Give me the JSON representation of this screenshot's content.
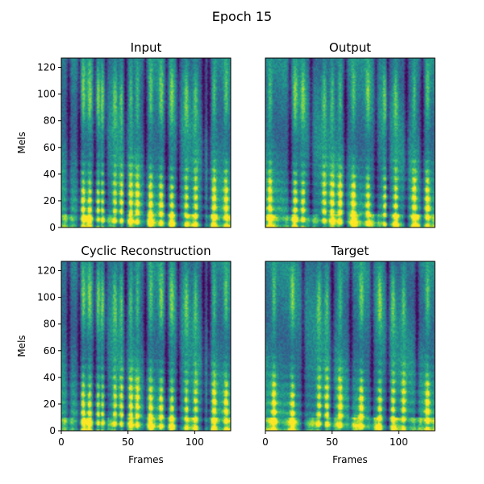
{
  "figure": {
    "suptitle": "Epoch 15"
  },
  "chart_data": [
    {
      "type": "heatmap",
      "title": "Input",
      "xlabel": "",
      "ylabel": "Mels",
      "xlim": [
        0,
        127
      ],
      "ylim": [
        0,
        127
      ],
      "xticks": [],
      "yticks": [
        0,
        20,
        40,
        60,
        80,
        100,
        120
      ],
      "colormap": "viridis",
      "spectrogram": {
        "seed": 11,
        "bright_columns": [
          16,
          21,
          27,
          31,
          40,
          45,
          52,
          57,
          67,
          75,
          83,
          94,
          101,
          115,
          124
        ],
        "dark_columns": [
          5,
          13,
          25,
          33,
          48,
          63,
          79,
          88,
          107,
          111
        ],
        "harmonic_bands": true,
        "low_band_strength": 0.9
      }
    },
    {
      "type": "heatmap",
      "title": "Output",
      "xlabel": "",
      "ylabel": "",
      "xlim": [
        0,
        127
      ],
      "ylim": [
        0,
        127
      ],
      "xticks": [],
      "yticks": [],
      "colormap": "viridis",
      "spectrogram": {
        "seed": 23,
        "bright_columns": [
          3,
          22,
          28,
          44,
          50,
          56,
          66,
          77,
          90,
          98,
          112,
          122
        ],
        "dark_columns": [
          18,
          34,
          60,
          83,
          92,
          106,
          118
        ],
        "harmonic_bands": true,
        "low_band_strength": 1.0
      }
    },
    {
      "type": "heatmap",
      "title": "Cyclic Reconstruction",
      "xlabel": "Frames",
      "ylabel": "Mels",
      "xlim": [
        0,
        127
      ],
      "ylim": [
        0,
        127
      ],
      "xticks": [
        0,
        50,
        100
      ],
      "yticks": [
        0,
        20,
        40,
        60,
        80,
        100,
        120
      ],
      "colormap": "viridis",
      "spectrogram": {
        "seed": 37,
        "bright_columns": [
          16,
          21,
          27,
          31,
          40,
          45,
          52,
          57,
          67,
          75,
          83,
          94,
          101,
          115,
          124
        ],
        "dark_columns": [
          5,
          13,
          25,
          33,
          48,
          63,
          79,
          88,
          107,
          111
        ],
        "harmonic_bands": true,
        "low_band_strength": 0.85
      }
    },
    {
      "type": "heatmap",
      "title": "Target",
      "xlabel": "Frames",
      "ylabel": "",
      "xlim": [
        0,
        127
      ],
      "ylim": [
        0,
        127
      ],
      "xticks": [
        0,
        50,
        100
      ],
      "yticks": [],
      "colormap": "viridis",
      "spectrogram": {
        "seed": 53,
        "bright_columns": [
          6,
          20,
          40,
          46,
          56,
          72,
          86,
          96,
          104,
          122
        ],
        "dark_columns": [
          28,
          50,
          64,
          80,
          92,
          114
        ],
        "harmonic_bands": true,
        "low_band_strength": 1.0
      }
    }
  ]
}
